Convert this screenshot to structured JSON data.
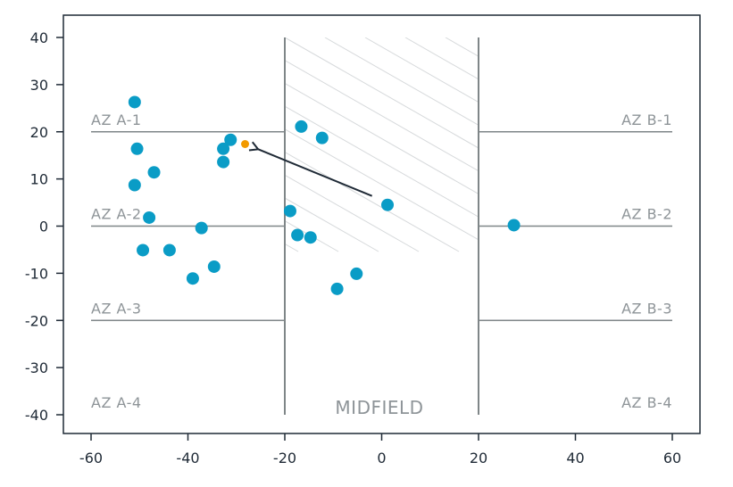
{
  "chart_data": {
    "type": "scatter",
    "title": "",
    "xlabel": "",
    "ylabel": "",
    "xlim": [
      -60,
      60
    ],
    "ylim": [
      -40,
      40
    ],
    "xticks": [
      -60,
      -40,
      -20,
      0,
      20,
      40,
      60
    ],
    "yticks": [
      -40,
      -30,
      -20,
      -10,
      0,
      10,
      20,
      30,
      40
    ],
    "xtick_labels": [
      "-60",
      "-40",
      "-20",
      "0",
      "20",
      "40",
      "60"
    ],
    "ytick_labels": [
      "-40",
      "-30",
      "-20",
      "-10",
      "0",
      "10",
      "20",
      "30",
      "40"
    ],
    "grid": false,
    "zones": {
      "left_labels": [
        {
          "text": "AZ A-1",
          "y": 20
        },
        {
          "text": "AZ A-2",
          "y": 0
        },
        {
          "text": "AZ A-3",
          "y": -20
        },
        {
          "text": "AZ A-4",
          "y": -40
        }
      ],
      "right_labels": [
        {
          "text": "AZ B-1",
          "y": 20
        },
        {
          "text": "AZ B-2",
          "y": 0
        },
        {
          "text": "AZ B-3",
          "y": -20
        },
        {
          "text": "AZ B-4",
          "y": -40
        }
      ],
      "left_lines_x": [
        -60,
        -20
      ],
      "right_lines_x": [
        20,
        60
      ],
      "line_y": [
        20,
        0,
        -20
      ],
      "midfield": {
        "label": "MIDFIELD",
        "x_range": [
          -20,
          20
        ]
      }
    },
    "points": [
      {
        "x": -51,
        "y": 26.3
      },
      {
        "x": -50.5,
        "y": 16.4
      },
      {
        "x": -47,
        "y": 11.4
      },
      {
        "x": -51,
        "y": 8.7
      },
      {
        "x": -48,
        "y": 1.8
      },
      {
        "x": -49.3,
        "y": -5.1
      },
      {
        "x": -43.8,
        "y": -5.1
      },
      {
        "x": -39,
        "y": -11.1
      },
      {
        "x": -37.2,
        "y": -0.4
      },
      {
        "x": -34.6,
        "y": -8.6
      },
      {
        "x": -32.7,
        "y": 16.4
      },
      {
        "x": -32.7,
        "y": 13.6
      },
      {
        "x": -31.2,
        "y": 18.3
      },
      {
        "x": -16.6,
        "y": 21.1
      },
      {
        "x": -12.3,
        "y": 18.7
      },
      {
        "x": -18.9,
        "y": 3.2
      },
      {
        "x": -17.4,
        "y": -1.9
      },
      {
        "x": -14.7,
        "y": -2.4
      },
      {
        "x": -9.2,
        "y": -13.3
      },
      {
        "x": -5.2,
        "y": -10.1
      },
      {
        "x": 1.2,
        "y": 4.5
      },
      {
        "x": 27.3,
        "y": 0.2
      }
    ],
    "highlight_point": {
      "x": -28.2,
      "y": 17.4
    },
    "arrow": {
      "from": {
        "x": -2,
        "y": 6.4
      },
      "to": {
        "x": -25.5,
        "y": 16.3
      }
    },
    "colors": {
      "point": "#0a9cc6",
      "highlight": "#f29a00",
      "arrow": "#1f2a36",
      "zone_line": "#7f8688",
      "axis": "#1f2a36",
      "hatch": "#d6d9db"
    }
  }
}
